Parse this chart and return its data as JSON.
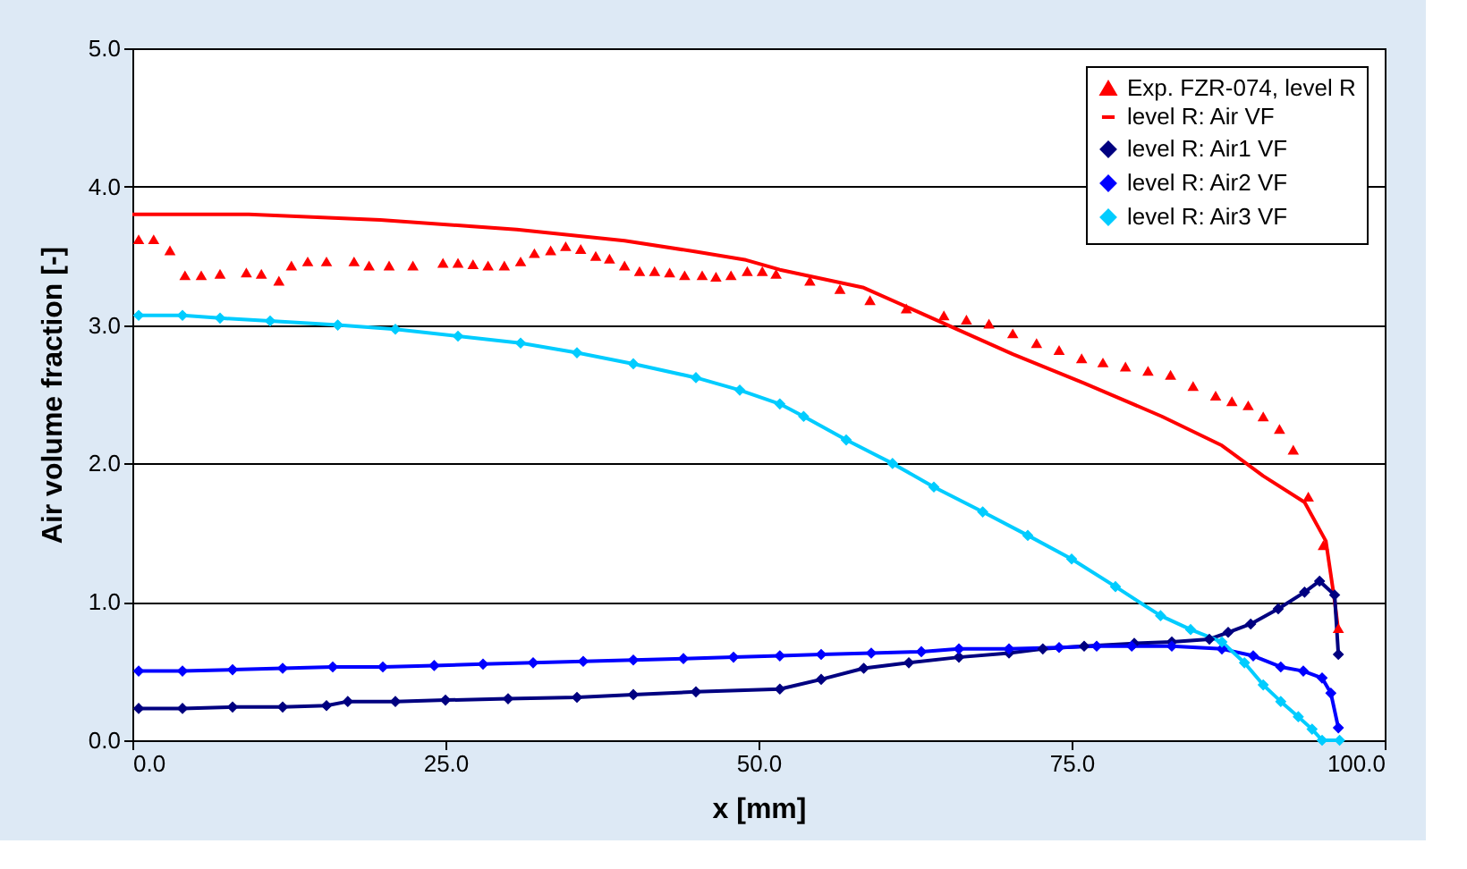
{
  "chart_data": {
    "type": "line",
    "xlabel": "x [mm]",
    "ylabel": "Air volume fraction [-]",
    "xlim": [
      0,
      100
    ],
    "ylim": [
      0,
      5
    ],
    "xticks": [
      {
        "value": 0,
        "label": "0.0"
      },
      {
        "value": 25,
        "label": "25.0"
      },
      {
        "value": 50,
        "label": "50.0"
      },
      {
        "value": 75,
        "label": "75.0"
      },
      {
        "value": 100,
        "label": "100.0"
      }
    ],
    "yticks": [
      {
        "value": 0,
        "label": "0.0"
      },
      {
        "value": 1,
        "label": "1.0"
      },
      {
        "value": 2,
        "label": "2.0"
      },
      {
        "value": 3,
        "label": "3.0"
      },
      {
        "value": 4,
        "label": "4.0"
      },
      {
        "value": 5,
        "label": "5.0"
      }
    ],
    "grid": "y",
    "legend": "top right",
    "series": [
      {
        "name": "Exp. FZR-074, level R",
        "type": "scatter",
        "marker": "triangle",
        "color": "#ff0000",
        "x": [
          0.5,
          1.7,
          3.0,
          4.2,
          5.5,
          7.0,
          9.1,
          10.3,
          11.7,
          12.7,
          14.0,
          15.5,
          17.7,
          18.9,
          20.5,
          22.4,
          24.8,
          26.0,
          27.2,
          28.4,
          29.7,
          31.0,
          32.1,
          33.4,
          34.6,
          35.8,
          37.0,
          38.1,
          39.3,
          40.5,
          41.7,
          42.9,
          44.1,
          45.5,
          46.6,
          47.8,
          49.1,
          50.3,
          51.4,
          54.1,
          56.5,
          58.9,
          61.8,
          64.8,
          66.6,
          68.4,
          70.3,
          72.2,
          74.0,
          75.8,
          77.5,
          79.3,
          81.1,
          82.9,
          84.7,
          86.5,
          87.8,
          89.1,
          90.3,
          91.6,
          92.7,
          93.9,
          95.1,
          96.3
        ],
        "values": [
          3.62,
          3.62,
          3.54,
          3.36,
          3.36,
          3.37,
          3.38,
          3.37,
          3.32,
          3.43,
          3.46,
          3.46,
          3.46,
          3.43,
          3.43,
          3.43,
          3.45,
          3.45,
          3.44,
          3.43,
          3.43,
          3.46,
          3.52,
          3.54,
          3.57,
          3.55,
          3.5,
          3.48,
          3.43,
          3.39,
          3.39,
          3.38,
          3.36,
          3.36,
          3.35,
          3.36,
          3.39,
          3.39,
          3.37,
          3.32,
          3.26,
          3.18,
          3.12,
          3.07,
          3.04,
          3.01,
          2.94,
          2.87,
          2.82,
          2.76,
          2.73,
          2.7,
          2.67,
          2.64,
          2.56,
          2.49,
          2.45,
          2.42,
          2.34,
          2.25,
          2.1,
          1.76,
          1.41,
          0.81
        ]
      },
      {
        "name": "level R: Air VF",
        "type": "line",
        "marker": "none",
        "color": "#ff0000",
        "x": [
          0,
          9.3,
          19.8,
          30.7,
          39.3,
          45,
          49,
          51.7,
          58.4,
          64.1,
          70.3,
          76,
          82.2,
          87,
          90.3,
          93.6,
          95.3,
          96,
          96.3
        ],
        "values": [
          3.8,
          3.8,
          3.76,
          3.69,
          3.61,
          3.53,
          3.47,
          3.4,
          3.27,
          3.04,
          2.79,
          2.58,
          2.34,
          2.13,
          1.91,
          1.72,
          1.44,
          1.01,
          0.79
        ]
      },
      {
        "name": "level R: Air1 VF",
        "type": "line",
        "marker": "diamond",
        "color": "#000080",
        "x": [
          0.5,
          4,
          8,
          12,
          15.5,
          17.2,
          21,
          25,
          30,
          35.5,
          40,
          45,
          51.7,
          55,
          58.4,
          62,
          66,
          70,
          72.7,
          76,
          80,
          83,
          86,
          87.5,
          89.3,
          91.5,
          93.6,
          94.8,
          96,
          96.3
        ],
        "values": [
          0.23,
          0.23,
          0.24,
          0.24,
          0.25,
          0.28,
          0.28,
          0.29,
          0.3,
          0.31,
          0.33,
          0.35,
          0.37,
          0.44,
          0.52,
          0.56,
          0.6,
          0.63,
          0.66,
          0.68,
          0.7,
          0.71,
          0.73,
          0.78,
          0.84,
          0.95,
          1.07,
          1.15,
          1.05,
          0.62
        ]
      },
      {
        "name": "level R: Air2 VF",
        "type": "line",
        "marker": "diamond",
        "color": "#0000ff",
        "x": [
          0.5,
          4,
          8,
          12,
          16,
          20,
          24.1,
          28,
          32,
          36,
          40,
          44,
          48,
          51.7,
          55,
          59,
          63,
          66,
          70,
          74,
          77,
          79.8,
          83,
          87,
          89.5,
          91.7,
          93.5,
          95,
          95.7,
          96.3
        ],
        "values": [
          0.5,
          0.5,
          0.51,
          0.52,
          0.53,
          0.53,
          0.54,
          0.55,
          0.56,
          0.57,
          0.58,
          0.59,
          0.6,
          0.61,
          0.62,
          0.63,
          0.64,
          0.66,
          0.66,
          0.67,
          0.68,
          0.68,
          0.68,
          0.66,
          0.61,
          0.53,
          0.5,
          0.45,
          0.34,
          0.09
        ]
      },
      {
        "name": "level R: Air3 VF",
        "type": "line",
        "marker": "diamond",
        "color": "#00ccff",
        "x": [
          0.5,
          4,
          7,
          11,
          16.4,
          21,
          26,
          31,
          35.5,
          40,
          45,
          48.5,
          51.7,
          53.6,
          57,
          60.7,
          64,
          67.9,
          71.5,
          75,
          78.5,
          82.1,
          84.5,
          87,
          88.8,
          90.3,
          91.7,
          93.1,
          94.2,
          95,
          96.4
        ],
        "values": [
          3.07,
          3.07,
          3.05,
          3.03,
          3.0,
          2.97,
          2.92,
          2.87,
          2.8,
          2.72,
          2.62,
          2.53,
          2.43,
          2.34,
          2.17,
          2.0,
          1.83,
          1.65,
          1.48,
          1.31,
          1.11,
          0.9,
          0.8,
          0.71,
          0.56,
          0.4,
          0.28,
          0.17,
          0.08,
          0.0,
          0.0
        ]
      }
    ]
  }
}
